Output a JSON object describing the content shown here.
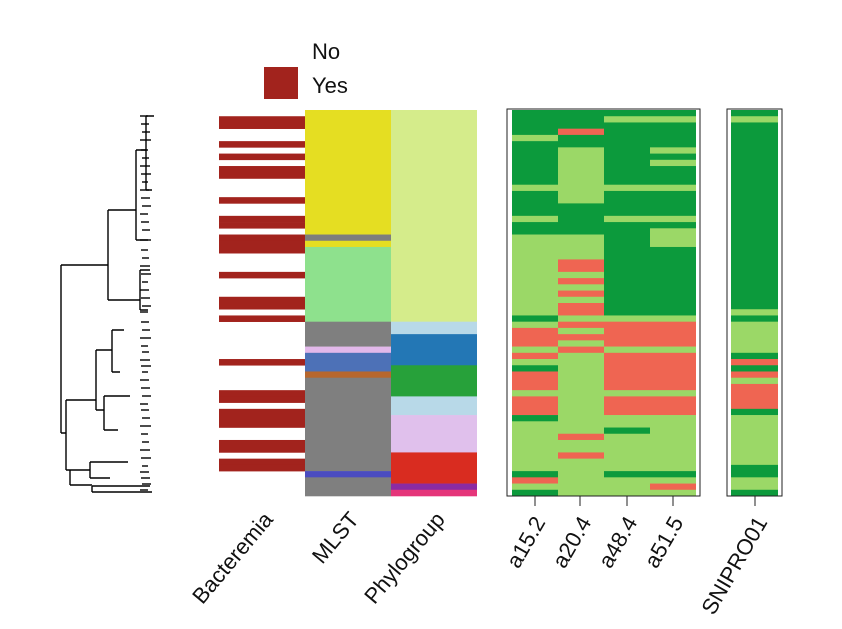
{
  "chart_data": {
    "type": "heatmap",
    "legend": {
      "placement": "top",
      "entries": [
        {
          "label": "No",
          "color": "#ffffff"
        },
        {
          "label": "Yes",
          "color": "#a2231d"
        }
      ]
    },
    "columns": {
      "bacteremia": "Bacteremia",
      "mlst": "MLST",
      "phylogroup": "Phylogroup",
      "a15_2": "a15.2",
      "a20_4": "a20.4",
      "a48_4": "a48.4",
      "a51_5": "a51.5",
      "snipro": "SNIPRO01"
    },
    "colors": {
      "yes": "#a2231d",
      "present_dark": "#0c9a3c",
      "present_light": "#9bd867",
      "absent": "#ef6552"
    },
    "rows": 62,
    "bacteremia_yes_segments": [
      [
        1,
        3
      ],
      [
        5,
        6
      ],
      [
        7,
        8
      ],
      [
        9,
        11
      ],
      [
        14,
        15
      ],
      [
        17,
        18
      ],
      [
        18,
        19
      ],
      [
        20,
        21
      ],
      [
        21,
        23
      ],
      [
        26,
        27
      ],
      [
        30,
        32
      ],
      [
        33,
        34
      ],
      [
        40,
        41
      ],
      [
        45,
        46
      ],
      [
        46,
        47
      ],
      [
        48,
        51
      ],
      [
        53,
        55
      ],
      [
        56,
        57
      ],
      [
        57,
        58
      ]
    ],
    "mlst_segments": [
      {
        "range": [
          0,
          20
        ],
        "color": "#e5de22"
      },
      {
        "range": [
          20,
          21
        ],
        "color": "#7d7d7d"
      },
      {
        "range": [
          21,
          22
        ],
        "color": "#e5de22"
      },
      {
        "range": [
          22,
          34
        ],
        "color": "#8ee18d"
      },
      {
        "range": [
          34,
          38
        ],
        "color": "#7f7f7f"
      },
      {
        "range": [
          38,
          39
        ],
        "color": "#e2b8ea"
      },
      {
        "range": [
          39,
          42
        ],
        "color": "#4d71b7"
      },
      {
        "range": [
          42,
          43
        ],
        "color": "#b7672e"
      },
      {
        "range": [
          43,
          58
        ],
        "color": "#7f7f7f"
      },
      {
        "range": [
          58,
          59
        ],
        "color": "#4b4cc0"
      },
      {
        "range": [
          59,
          62
        ],
        "color": "#7f7f7f"
      }
    ],
    "phylogroup_segments": [
      {
        "range": [
          0,
          34
        ],
        "color": "#d5ec8b"
      },
      {
        "range": [
          34,
          36
        ],
        "color": "#b8d9e8"
      },
      {
        "range": [
          36,
          41
        ],
        "color": "#2377b5"
      },
      {
        "range": [
          41,
          46
        ],
        "color": "#27a13a"
      },
      {
        "range": [
          46,
          49
        ],
        "color": "#b8d9e8"
      },
      {
        "range": [
          49,
          55
        ],
        "color": "#e0c0ec"
      },
      {
        "range": [
          55,
          60
        ],
        "color": "#d92c20"
      },
      {
        "range": [
          60,
          61
        ],
        "color": "#8b2ba3"
      },
      {
        "range": [
          61,
          62
        ],
        "color": "#e5357a"
      }
    ],
    "a15_2": [
      {
        "range": [
          0,
          4
        ],
        "v": "D"
      },
      {
        "range": [
          4,
          5
        ],
        "v": "L"
      },
      {
        "range": [
          5,
          12
        ],
        "v": "D"
      },
      {
        "range": [
          12,
          13
        ],
        "v": "L"
      },
      {
        "range": [
          13,
          17
        ],
        "v": "D"
      },
      {
        "range": [
          17,
          18
        ],
        "v": "L"
      },
      {
        "range": [
          18,
          20
        ],
        "v": "D"
      },
      {
        "range": [
          20,
          33
        ],
        "v": "L"
      },
      {
        "range": [
          33,
          34
        ],
        "v": "D"
      },
      {
        "range": [
          34,
          35
        ],
        "v": "L"
      },
      {
        "range": [
          35,
          38
        ],
        "v": "A"
      },
      {
        "range": [
          38,
          39
        ],
        "v": "L"
      },
      {
        "range": [
          39,
          40
        ],
        "v": "A"
      },
      {
        "range": [
          40,
          41
        ],
        "v": "L"
      },
      {
        "range": [
          41,
          42
        ],
        "v": "D"
      },
      {
        "range": [
          42,
          45
        ],
        "v": "A"
      },
      {
        "range": [
          45,
          46
        ],
        "v": "L"
      },
      {
        "range": [
          46,
          49
        ],
        "v": "A"
      },
      {
        "range": [
          49,
          50
        ],
        "v": "D"
      },
      {
        "range": [
          50,
          58
        ],
        "v": "L"
      },
      {
        "range": [
          58,
          59
        ],
        "v": "D"
      },
      {
        "range": [
          59,
          60
        ],
        "v": "A"
      },
      {
        "range": [
          60,
          61
        ],
        "v": "L"
      },
      {
        "range": [
          61,
          62
        ],
        "v": "D"
      }
    ],
    "a20_4": [
      {
        "range": [
          0,
          3
        ],
        "v": "D"
      },
      {
        "range": [
          3,
          4
        ],
        "v": "A"
      },
      {
        "range": [
          4,
          6
        ],
        "v": "D"
      },
      {
        "range": [
          6,
          15
        ],
        "v": "L"
      },
      {
        "range": [
          15,
          20
        ],
        "v": "D"
      },
      {
        "range": [
          20,
          24
        ],
        "v": "L"
      },
      {
        "range": [
          24,
          26
        ],
        "v": "A"
      },
      {
        "range": [
          26,
          27
        ],
        "v": "L"
      },
      {
        "range": [
          27,
          28
        ],
        "v": "A"
      },
      {
        "range": [
          28,
          29
        ],
        "v": "L"
      },
      {
        "range": [
          29,
          30
        ],
        "v": "A"
      },
      {
        "range": [
          30,
          31
        ],
        "v": "L"
      },
      {
        "range": [
          31,
          33
        ],
        "v": "A"
      },
      {
        "range": [
          33,
          34
        ],
        "v": "L"
      },
      {
        "range": [
          34,
          35
        ],
        "v": "A"
      },
      {
        "range": [
          35,
          36
        ],
        "v": "L"
      },
      {
        "range": [
          36,
          37
        ],
        "v": "A"
      },
      {
        "range": [
          37,
          38
        ],
        "v": "L"
      },
      {
        "range": [
          38,
          39
        ],
        "v": "A"
      },
      {
        "range": [
          39,
          52
        ],
        "v": "L"
      },
      {
        "range": [
          52,
          53
        ],
        "v": "A"
      },
      {
        "range": [
          53,
          55
        ],
        "v": "L"
      },
      {
        "range": [
          55,
          56
        ],
        "v": "A"
      },
      {
        "range": [
          56,
          62
        ],
        "v": "L"
      }
    ],
    "a48_4": [
      {
        "range": [
          0,
          1
        ],
        "v": "D"
      },
      {
        "range": [
          1,
          2
        ],
        "v": "L"
      },
      {
        "range": [
          2,
          12
        ],
        "v": "D"
      },
      {
        "range": [
          12,
          13
        ],
        "v": "L"
      },
      {
        "range": [
          13,
          17
        ],
        "v": "D"
      },
      {
        "range": [
          17,
          18
        ],
        "v": "L"
      },
      {
        "range": [
          18,
          33
        ],
        "v": "D"
      },
      {
        "range": [
          33,
          34
        ],
        "v": "L"
      },
      {
        "range": [
          34,
          38
        ],
        "v": "A"
      },
      {
        "range": [
          38,
          39
        ],
        "v": "L"
      },
      {
        "range": [
          39,
          45
        ],
        "v": "A"
      },
      {
        "range": [
          45,
          46
        ],
        "v": "L"
      },
      {
        "range": [
          46,
          49
        ],
        "v": "A"
      },
      {
        "range": [
          49,
          51
        ],
        "v": "L"
      },
      {
        "range": [
          51,
          52
        ],
        "v": "D"
      },
      {
        "range": [
          52,
          58
        ],
        "v": "L"
      },
      {
        "range": [
          58,
          59
        ],
        "v": "D"
      },
      {
        "range": [
          59,
          62
        ],
        "v": "L"
      }
    ],
    "a51_5": [
      {
        "range": [
          0,
          1
        ],
        "v": "D"
      },
      {
        "range": [
          1,
          2
        ],
        "v": "L"
      },
      {
        "range": [
          2,
          6
        ],
        "v": "D"
      },
      {
        "range": [
          6,
          7
        ],
        "v": "L"
      },
      {
        "range": [
          7,
          8
        ],
        "v": "D"
      },
      {
        "range": [
          8,
          9
        ],
        "v": "L"
      },
      {
        "range": [
          9,
          12
        ],
        "v": "D"
      },
      {
        "range": [
          12,
          13
        ],
        "v": "L"
      },
      {
        "range": [
          13,
          17
        ],
        "v": "D"
      },
      {
        "range": [
          17,
          18
        ],
        "v": "L"
      },
      {
        "range": [
          18,
          19
        ],
        "v": "D"
      },
      {
        "range": [
          19,
          22
        ],
        "v": "L"
      },
      {
        "range": [
          22,
          33
        ],
        "v": "D"
      },
      {
        "range": [
          33,
          34
        ],
        "v": "L"
      },
      {
        "range": [
          34,
          38
        ],
        "v": "A"
      },
      {
        "range": [
          38,
          39
        ],
        "v": "L"
      },
      {
        "range": [
          39,
          45
        ],
        "v": "A"
      },
      {
        "range": [
          45,
          46
        ],
        "v": "L"
      },
      {
        "range": [
          46,
          49
        ],
        "v": "A"
      },
      {
        "range": [
          49,
          58
        ],
        "v": "L"
      },
      {
        "range": [
          58,
          59
        ],
        "v": "D"
      },
      {
        "range": [
          59,
          60
        ],
        "v": "L"
      },
      {
        "range": [
          60,
          61
        ],
        "v": "A"
      },
      {
        "range": [
          61,
          62
        ],
        "v": "L"
      }
    ],
    "snipro": [
      {
        "range": [
          0,
          1
        ],
        "v": "D"
      },
      {
        "range": [
          1,
          2
        ],
        "v": "L"
      },
      {
        "range": [
          2,
          32
        ],
        "v": "D"
      },
      {
        "range": [
          32,
          33
        ],
        "v": "L"
      },
      {
        "range": [
          33,
          34
        ],
        "v": "D"
      },
      {
        "range": [
          34,
          39
        ],
        "v": "L"
      },
      {
        "range": [
          39,
          40
        ],
        "v": "D"
      },
      {
        "range": [
          40,
          41
        ],
        "v": "A"
      },
      {
        "range": [
          41,
          42
        ],
        "v": "D"
      },
      {
        "range": [
          42,
          43
        ],
        "v": "A"
      },
      {
        "range": [
          43,
          44
        ],
        "v": "L"
      },
      {
        "range": [
          44,
          48
        ],
        "v": "A"
      },
      {
        "range": [
          48,
          49
        ],
        "v": "D"
      },
      {
        "range": [
          49,
          57
        ],
        "v": "L"
      },
      {
        "range": [
          57,
          59
        ],
        "v": "D"
      },
      {
        "range": [
          59,
          61
        ],
        "v": "L"
      },
      {
        "range": [
          61,
          62
        ],
        "v": "D"
      }
    ]
  }
}
